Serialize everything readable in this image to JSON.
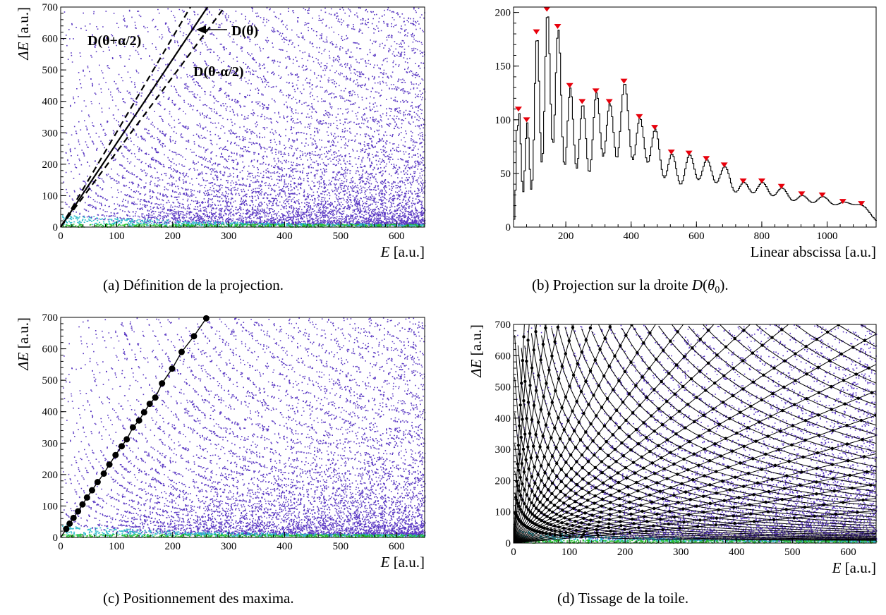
{
  "colors": {
    "scatter_main": "#3d15b8",
    "scatter_dense": "#2a0fa0",
    "scatter_cyan": "#21b8c8",
    "scatter_green": "#28c028",
    "marker_peak": "#e8000b",
    "line": "#000000"
  },
  "panels": {
    "a": {
      "ylabel_symbol": "ΔE",
      "ylabel_unit": "[a.u.]",
      "xlabel_symbol": "E",
      "xlabel_unit": "[a.u.]",
      "annotations": {
        "d_theta": "D(θ)",
        "d_plus": "D(θ+α/2)",
        "d_minus": "D(θ-α/2)"
      },
      "caption": {
        "prefix": "(a)",
        "text": "Définition de la projection."
      }
    },
    "b": {
      "xlabel": "Linear abscissa [a.u.]",
      "caption": {
        "prefix": "(b)",
        "text_before": "Projection sur la droite ",
        "symbol": "D",
        "subscript": "0",
        "text_after": ")."
      }
    },
    "c": {
      "ylabel_symbol": "ΔE",
      "ylabel_unit": "[a.u.]",
      "xlabel_symbol": "E",
      "xlabel_unit": "[a.u.]",
      "caption": {
        "prefix": "(c)",
        "text": "Positionnement des maxima."
      }
    },
    "d": {
      "ylabel_symbol": "ΔE",
      "ylabel_unit": "[a.u.]",
      "xlabel_symbol": "E",
      "xlabel_unit": "[a.u.]",
      "caption": {
        "prefix": "(d)",
        "text": "Tissage de la toile."
      }
    }
  },
  "chart_data": [
    {
      "panel": "a",
      "type": "scatter",
      "xlim": [
        0,
        650
      ],
      "ylim": [
        0,
        700
      ],
      "xticks": [
        0,
        100,
        200,
        300,
        400,
        500,
        600
      ],
      "yticks": [
        0,
        100,
        200,
        300,
        400,
        500,
        600,
        700
      ],
      "lines": [
        {
          "label": "D(θ)",
          "style": "solid",
          "slope": 2.67
        },
        {
          "label": "D(θ+α/2)",
          "style": "dashed",
          "slope": 3.02
        },
        {
          "label": "D(θ-α/2)",
          "style": "dashed",
          "slope": 2.39
        }
      ]
    },
    {
      "panel": "b",
      "type": "line",
      "xlim": [
        40,
        1150
      ],
      "ylim": [
        0,
        205
      ],
      "xticks": [
        200,
        400,
        600,
        800,
        1000
      ],
      "yticks": [
        0,
        50,
        100,
        150,
        200
      ],
      "peaks": [
        {
          "x": 55,
          "y": 105
        },
        {
          "x": 80,
          "y": 95
        },
        {
          "x": 110,
          "y": 177
        },
        {
          "x": 142,
          "y": 198
        },
        {
          "x": 175,
          "y": 182
        },
        {
          "x": 212,
          "y": 127
        },
        {
          "x": 250,
          "y": 112
        },
        {
          "x": 292,
          "y": 122
        },
        {
          "x": 333,
          "y": 112
        },
        {
          "x": 378,
          "y": 131
        },
        {
          "x": 425,
          "y": 98
        },
        {
          "x": 472,
          "y": 88
        },
        {
          "x": 523,
          "y": 65
        },
        {
          "x": 577,
          "y": 64
        },
        {
          "x": 630,
          "y": 59
        },
        {
          "x": 685,
          "y": 53
        },
        {
          "x": 743,
          "y": 38
        },
        {
          "x": 800,
          "y": 38
        },
        {
          "x": 860,
          "y": 33
        },
        {
          "x": 922,
          "y": 26
        },
        {
          "x": 985,
          "y": 25
        },
        {
          "x": 1048,
          "y": 19
        },
        {
          "x": 1105,
          "y": 17
        }
      ]
    },
    {
      "panel": "c",
      "type": "scatter",
      "xlim": [
        0,
        650
      ],
      "ylim": [
        0,
        700
      ],
      "xticks": [
        0,
        100,
        200,
        300,
        400,
        500,
        600
      ],
      "yticks": [
        0,
        100,
        200,
        300,
        400,
        500,
        600,
        700
      ],
      "maxima": [
        {
          "x": 10,
          "y": 27
        },
        {
          "x": 16,
          "y": 44
        },
        {
          "x": 23,
          "y": 62
        },
        {
          "x": 31,
          "y": 83
        },
        {
          "x": 39,
          "y": 105
        },
        {
          "x": 47,
          "y": 127
        },
        {
          "x": 56,
          "y": 150
        },
        {
          "x": 66,
          "y": 176
        },
        {
          "x": 77,
          "y": 203
        },
        {
          "x": 87,
          "y": 232
        },
        {
          "x": 98,
          "y": 262
        },
        {
          "x": 109,
          "y": 290
        },
        {
          "x": 118,
          "y": 312
        },
        {
          "x": 129,
          "y": 350
        },
        {
          "x": 140,
          "y": 372
        },
        {
          "x": 149,
          "y": 398
        },
        {
          "x": 159,
          "y": 425
        },
        {
          "x": 169,
          "y": 445
        },
        {
          "x": 181,
          "y": 490
        },
        {
          "x": 199,
          "y": 537
        },
        {
          "x": 216,
          "y": 590
        },
        {
          "x": 238,
          "y": 640
        },
        {
          "x": 260,
          "y": 697
        }
      ]
    },
    {
      "panel": "d",
      "type": "scatter",
      "xlim": [
        0,
        650
      ],
      "ylim": [
        0,
        700
      ],
      "xticks": [
        0,
        100,
        200,
        300,
        400,
        500,
        600
      ],
      "yticks": [
        0,
        100,
        200,
        300,
        400,
        500,
        600,
        700
      ],
      "grid_line_slopes": [
        36,
        25,
        17,
        12,
        8.7,
        6.5,
        5,
        4,
        3.3,
        2.75,
        2.3,
        1.95,
        1.65,
        1.42,
        1.2,
        1.03,
        0.88,
        0.75,
        0.63,
        0.53,
        0.44,
        0.36,
        0.29,
        0.22,
        0.16
      ],
      "isotope_curve_constants": [
        1900,
        3100,
        4500,
        6200,
        8200,
        10500,
        13200,
        16300,
        19800,
        23800,
        28300,
        33300,
        38800,
        44800,
        51500,
        58800,
        66800,
        75500,
        85000,
        95300,
        106300,
        118200,
        131000,
        144700,
        159300,
        175000,
        191600,
        209300,
        228100,
        248000,
        269000,
        291000,
        314000,
        338000,
        363000,
        389000,
        416000,
        444000,
        473000
      ]
    }
  ]
}
